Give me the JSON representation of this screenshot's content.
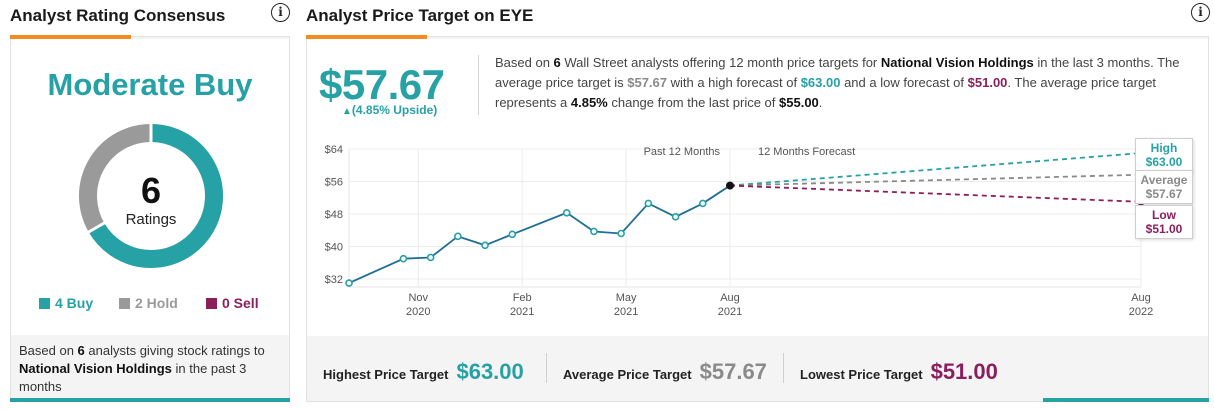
{
  "left": {
    "title": "Analyst Rating Consensus",
    "info_glyph": "i",
    "consensus": "Moderate Buy",
    "ratings_count": "6",
    "ratings_label": "Ratings",
    "buy_count": 4,
    "hold_count": 2,
    "sell_count": 0,
    "legend": {
      "buy": "4 Buy",
      "hold": "2 Hold",
      "sell": "0 Sell"
    },
    "footer": {
      "pre": "Based on ",
      "count": "6",
      "mid": " analysts giving stock ratings to ",
      "company": "National Vision Holdings",
      "post": " in the past 3 months"
    }
  },
  "right": {
    "title": "Analyst Price Target on EYE",
    "info_glyph": "i",
    "big_price": "$57.67",
    "upside_arrow": "▲",
    "upside": "(4.85% Upside)",
    "desc": {
      "p1": "Based on ",
      "analysts": "6",
      "p2": " Wall Street analysts offering 12 month price targets for ",
      "company": "National Vision Holdings",
      "p3": " in the last 3 months. The average price target is ",
      "avg": "$57.67",
      "p4": " with a high forecast of ",
      "high": "$63.00",
      "p5": " and a low forecast of ",
      "low": "$51.00",
      "p6": ". The average price target represents a ",
      "pct": "4.85%",
      "p7": " change from the last price of ",
      "last": "$55.00",
      "p8": "."
    },
    "targets": {
      "high_label": "High",
      "high": "$63.00",
      "avg_label": "Average",
      "avg": "$57.67",
      "low_label": "Low",
      "low": "$51.00"
    },
    "footer": {
      "highest_label": "Highest Price Target",
      "highest": "$63.00",
      "average_label": "Average Price Target",
      "average": "$57.67",
      "lowest_label": "Lowest Price Target",
      "lowest": "$51.00"
    }
  },
  "colors": {
    "teal": "#26a1a6",
    "hold_gray": "#9a9a9a",
    "purple": "#8a1f5e",
    "orange": "#f28c1e",
    "line_blue": "#1f6e96"
  },
  "chart_data": {
    "type": "line",
    "title": "",
    "period_labels": [
      "Past 12 Months",
      "12 Months Forecast"
    ],
    "y_ticks": [
      "$64",
      "$56",
      "$48",
      "$40",
      "$32"
    ],
    "ylim": [
      32,
      64
    ],
    "x_ticks": [
      {
        "month": "Nov",
        "year": "2020",
        "t": 2
      },
      {
        "month": "Feb",
        "year": "2021",
        "t": 5
      },
      {
        "month": "May",
        "year": "2021",
        "t": 8
      },
      {
        "month": "Aug",
        "year": "2021",
        "t": 11
      },
      {
        "month": "Aug",
        "year": "2022",
        "t": 24
      }
    ],
    "history": {
      "t": [
        0,
        1,
        1.5,
        2,
        2.5,
        3,
        4,
        4.5,
        5,
        5.5,
        6,
        6.5,
        7
      ],
      "values": [
        31,
        37,
        37.3,
        42.5,
        40.3,
        43,
        48.3,
        43.7,
        43.2,
        50.6,
        47.3,
        50.6,
        55
      ]
    },
    "history_t_scale": [
      0,
      11
    ],
    "forecast": {
      "start": {
        "t": 11,
        "value": 55
      },
      "end_t": 24,
      "high": 63,
      "average": 57.67,
      "low": 51
    }
  }
}
